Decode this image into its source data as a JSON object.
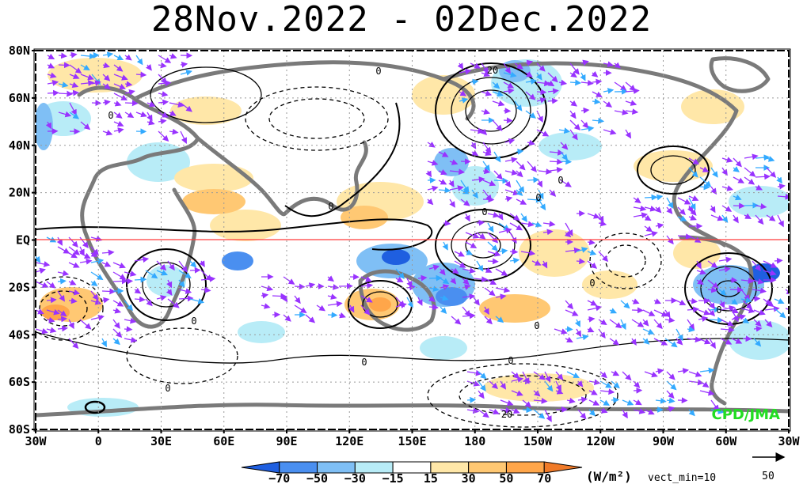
{
  "title": "28Nov.2022 - 02Dec.2022",
  "lat_ticks": [
    "80N",
    "60N",
    "40N",
    "20N",
    "EQ",
    "20S",
    "40S",
    "60S",
    "80S"
  ],
  "lon_ticks": [
    "30W",
    "0",
    "30E",
    "60E",
    "90E",
    "120E",
    "150E",
    "180",
    "150W",
    "120W",
    "90W",
    "60W",
    "30W"
  ],
  "colorbar": {
    "unit": "(W/m²)",
    "levels": [
      "−70",
      "−50",
      "−30",
      "−15",
      "15",
      "30",
      "50",
      "70"
    ],
    "colors": [
      "#1f5fe0",
      "#4a8ff0",
      "#7fbff5",
      "#b8ecf7",
      "#ffffff",
      "#ffe7a8",
      "#ffc873",
      "#ffa64a",
      "#f07a28"
    ]
  },
  "vect_min": "vect_min=10",
  "ref_vector": "50",
  "credit": "CPD/JMA",
  "contour_labels": [
    "0",
    "0",
    "0",
    "0",
    "0",
    "0",
    "0",
    "0",
    "0",
    "0",
    "0",
    "0",
    "20",
    "20",
    "0"
  ],
  "colors": {
    "equator": "#ff3b3b",
    "coast": "#7a7a7a",
    "vector": "#9933ff",
    "vector_strong": "#33aaff",
    "credit": "#22dd22"
  }
}
